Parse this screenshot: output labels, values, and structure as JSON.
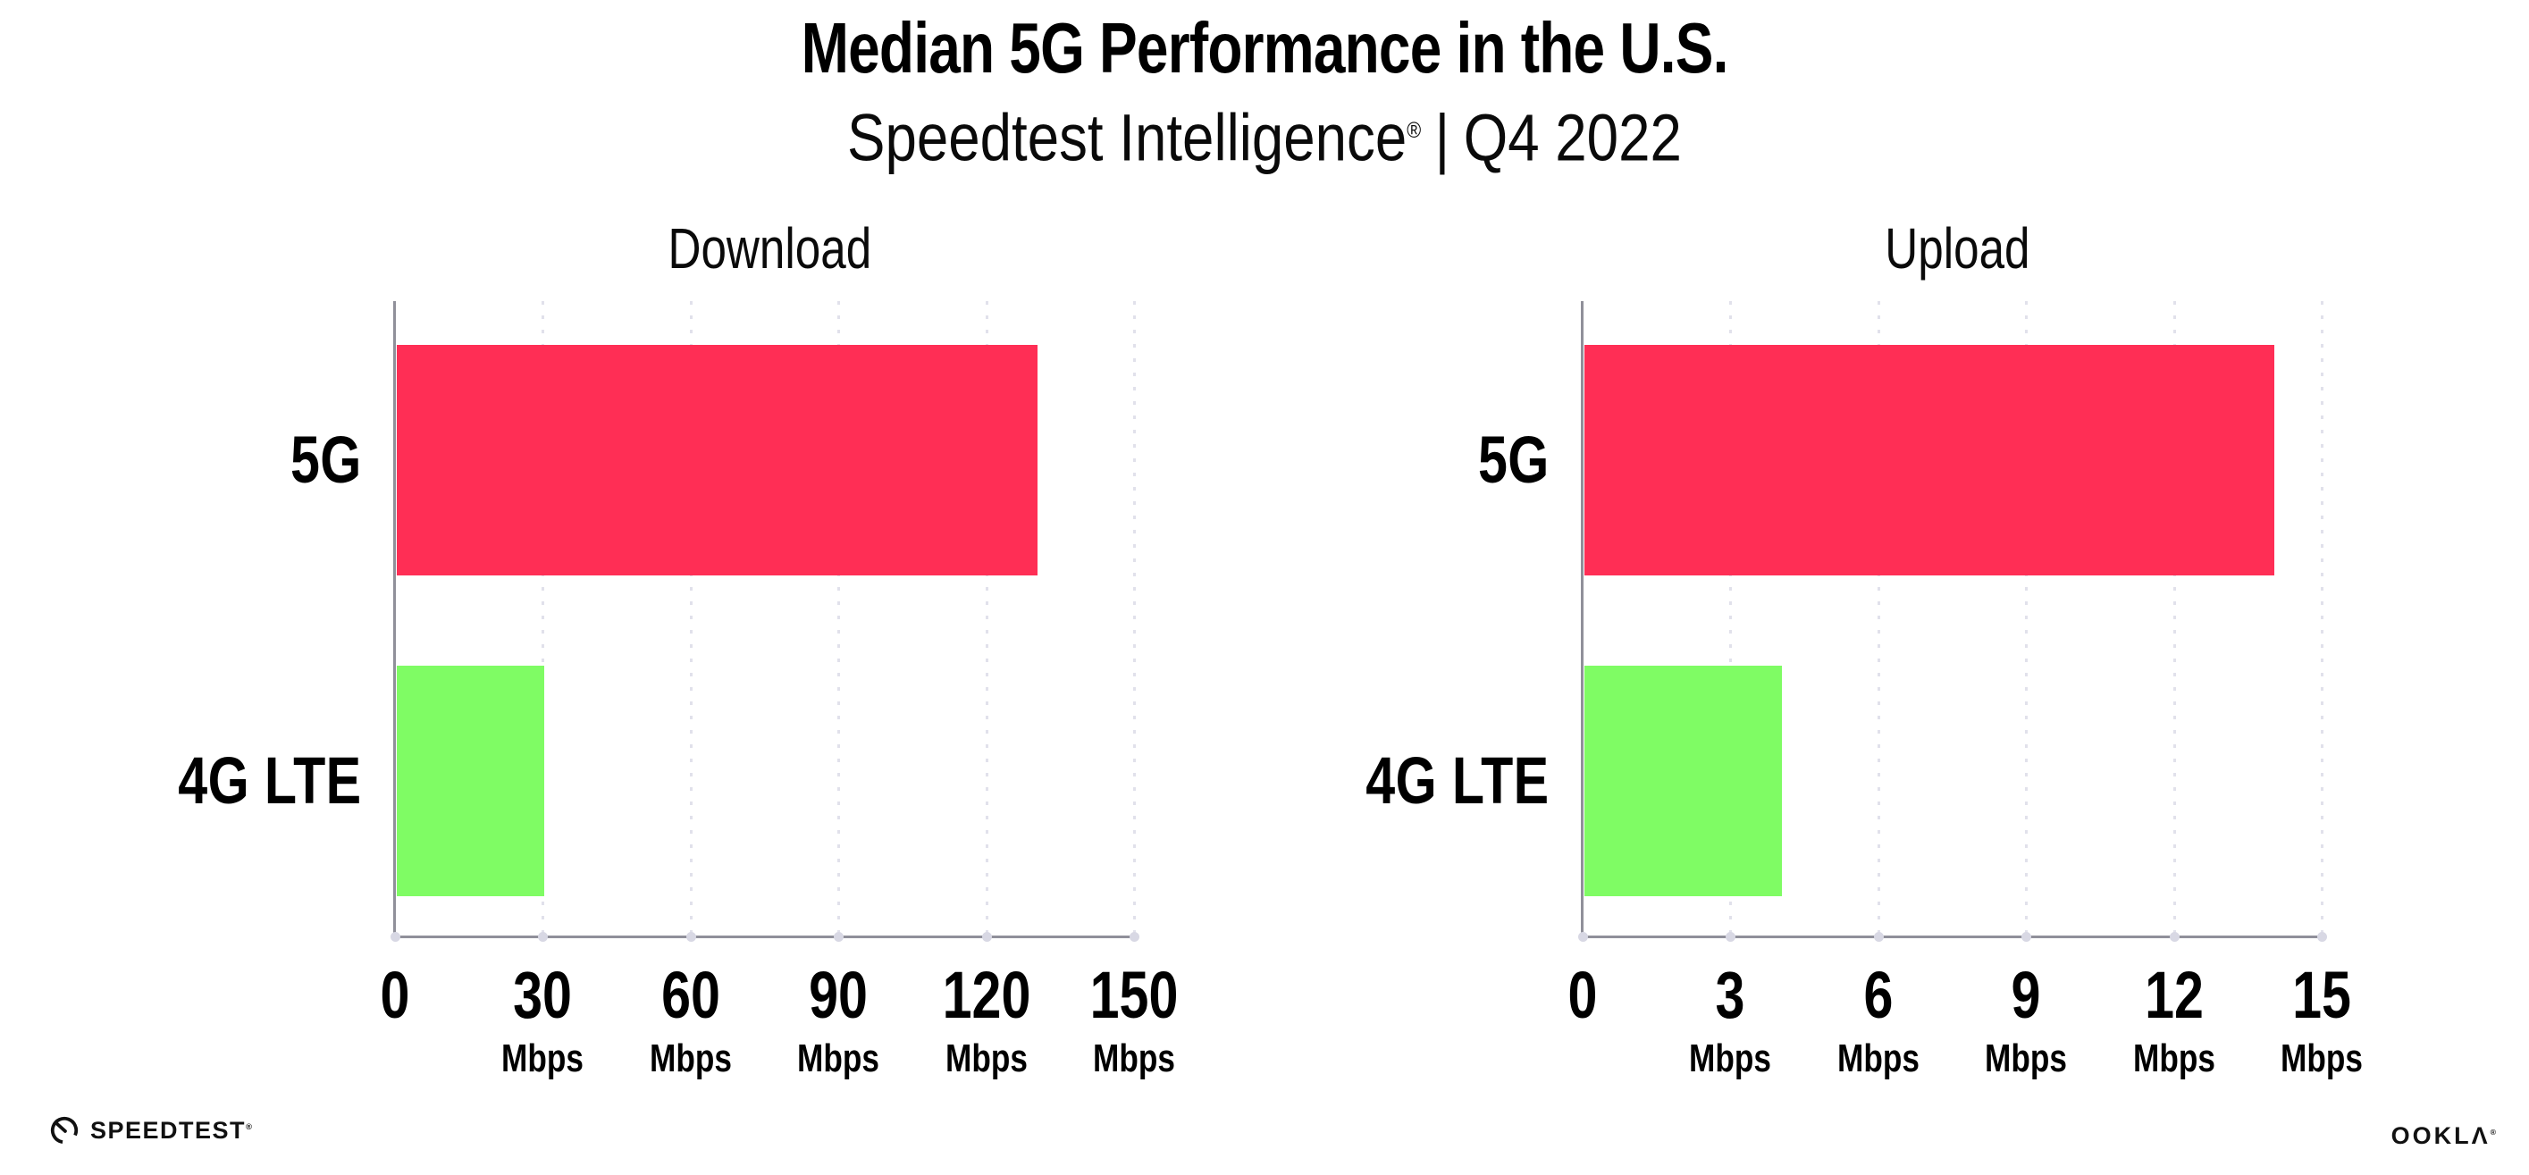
{
  "header": {
    "title": "Median 5G Performance in the U.S.",
    "subtitle_brand": "Speedtest Intelligence",
    "subtitle_reg": "®",
    "subtitle_sep": "|",
    "subtitle_period": "Q4 2022"
  },
  "chart_data": [
    {
      "type": "bar",
      "orientation": "horizontal",
      "title": "Download",
      "categories": [
        "5G",
        "4G LTE"
      ],
      "values": [
        130,
        30
      ],
      "unit": "Mbps",
      "xlim": [
        0,
        150
      ],
      "xticks": [
        0,
        30,
        60,
        90,
        120,
        150
      ],
      "xtick_unit_label": "Mbps",
      "bar_colors": [
        "#FF2E55",
        "#7FFC64"
      ],
      "grid": "vertical-dotted",
      "legend": "none"
    },
    {
      "type": "bar",
      "orientation": "horizontal",
      "title": "Upload",
      "categories": [
        "5G",
        "4G LTE"
      ],
      "values": [
        14,
        4
      ],
      "unit": "Mbps",
      "xlim": [
        0,
        15
      ],
      "xticks": [
        0,
        3,
        6,
        9,
        12,
        15
      ],
      "xtick_unit_label": "Mbps",
      "bar_colors": [
        "#FF2E55",
        "#7FFC64"
      ],
      "grid": "vertical-dotted",
      "legend": "none"
    }
  ],
  "footer": {
    "speedtest_logo_text": "SPEEDTEST",
    "speedtest_logo_reg": "®",
    "ookla_logo_text": "OOKLΛ",
    "ookla_logo_reg": "®"
  },
  "colors": {
    "bar_5g": "#FF2E55",
    "bar_4g_lte": "#7FFC64",
    "axis": "#90909A",
    "gridline": "#E1E1EB",
    "tick_dot": "#D8D8E4",
    "text": "#000000"
  }
}
